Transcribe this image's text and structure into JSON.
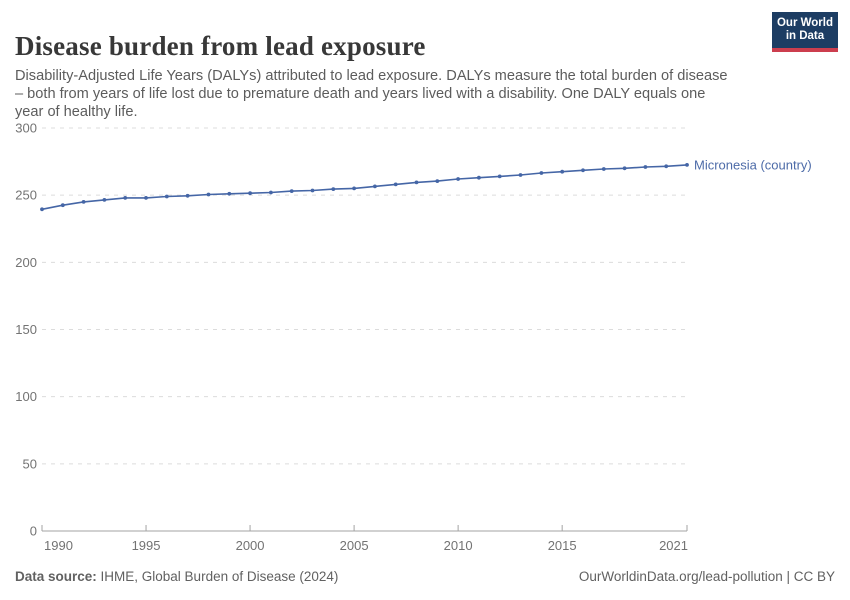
{
  "header": {
    "title": "Disease burden from lead exposure",
    "subtitle_lines": [
      "Disability-Adjusted Life Years (DALYs) attributed to lead exposure. DALYs measure the total burden of disease",
      "– both from years of life lost due to premature death and years lived with a disability. One DALY equals one",
      "year of healthy life."
    ],
    "logo": {
      "line1": "Our World",
      "line2": "in Data"
    }
  },
  "chart_data": {
    "type": "line",
    "title": "Disease burden from lead exposure",
    "xlabel": "",
    "ylabel": "",
    "ylim": [
      0,
      300
    ],
    "y_ticks": [
      0,
      50,
      100,
      150,
      200,
      250,
      300
    ],
    "x_ticks": [
      1990,
      1995,
      2000,
      2005,
      2010,
      2015,
      2021
    ],
    "grid": true,
    "legend_position": "end-of-line",
    "x": [
      1990,
      1991,
      1992,
      1993,
      1994,
      1995,
      1996,
      1997,
      1998,
      1999,
      2000,
      2001,
      2002,
      2003,
      2004,
      2005,
      2006,
      2007,
      2008,
      2009,
      2010,
      2011,
      2012,
      2013,
      2014,
      2015,
      2016,
      2017,
      2018,
      2019,
      2020,
      2021
    ],
    "series": [
      {
        "name": "Micronesia (country)",
        "values": [
          239.5,
          242.5,
          245,
          246.5,
          248,
          248,
          249,
          249.5,
          250.5,
          251,
          251.5,
          252,
          253,
          253.5,
          254.5,
          255,
          256.5,
          258,
          259.5,
          260.5,
          262,
          263,
          264,
          265,
          266.5,
          267.5,
          268.5,
          269.5,
          270,
          271,
          271.5,
          272.5
        ]
      }
    ]
  },
  "footer": {
    "source_label": "Data source:",
    "source_text": " IHME, Global Burden of Disease (2024)",
    "rights": "OurWorldinData.org/lead-pollution | CC BY"
  },
  "colors": {
    "line": "#4566a6",
    "series_label": "#4d6ba8",
    "gridline": "#dcdcdc",
    "axis": "#a3a3a3",
    "tick_text": "#737373",
    "title": "#383838",
    "subtitle": "#5c5c5c",
    "footer": "#616161",
    "logo_bg": "#1d3d63",
    "logo_stripe": "#cc3e4e"
  }
}
